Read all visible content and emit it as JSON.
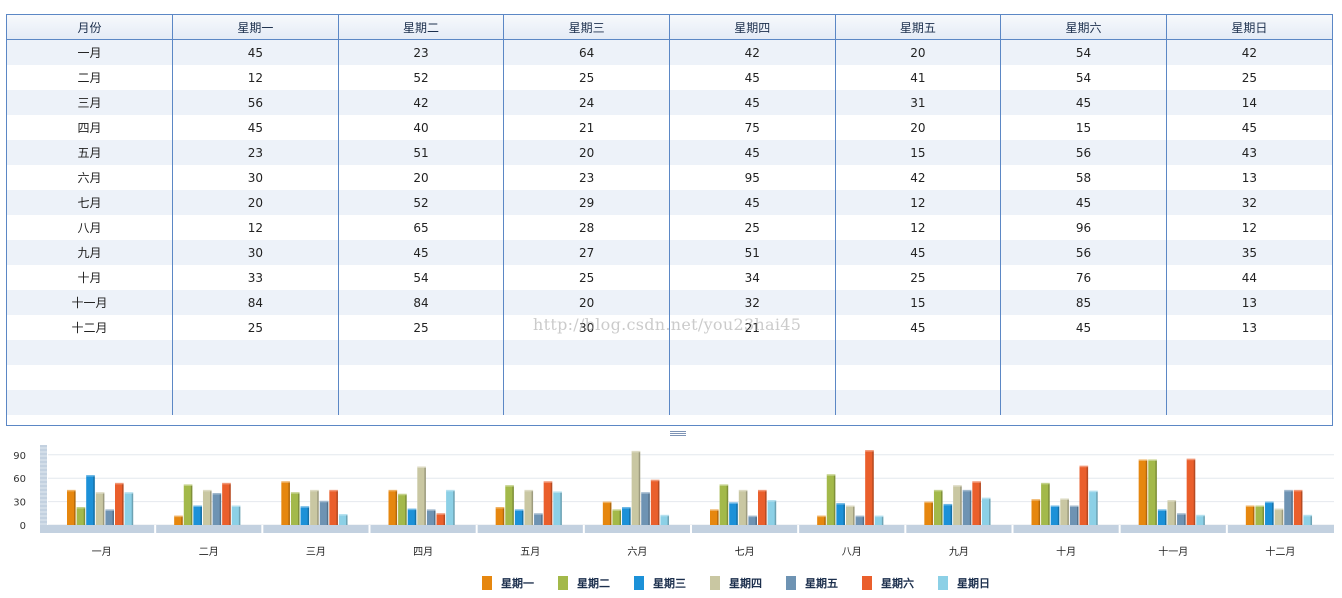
{
  "table": {
    "columns": [
      "月份",
      "星期一",
      "星期二",
      "星期三",
      "星期四",
      "星期五",
      "星期六",
      "星期日"
    ],
    "rows": [
      [
        "一月",
        "45",
        "23",
        "64",
        "42",
        "20",
        "54",
        "42"
      ],
      [
        "二月",
        "12",
        "52",
        "25",
        "45",
        "41",
        "54",
        "25"
      ],
      [
        "三月",
        "56",
        "42",
        "24",
        "45",
        "31",
        "45",
        "14"
      ],
      [
        "四月",
        "45",
        "40",
        "21",
        "75",
        "20",
        "15",
        "45"
      ],
      [
        "五月",
        "23",
        "51",
        "20",
        "45",
        "15",
        "56",
        "43"
      ],
      [
        "六月",
        "30",
        "20",
        "23",
        "95",
        "42",
        "58",
        "13"
      ],
      [
        "七月",
        "20",
        "52",
        "29",
        "45",
        "12",
        "45",
        "32"
      ],
      [
        "八月",
        "12",
        "65",
        "28",
        "25",
        "12",
        "96",
        "12"
      ],
      [
        "九月",
        "30",
        "45",
        "27",
        "51",
        "45",
        "56",
        "35"
      ],
      [
        "十月",
        "33",
        "54",
        "25",
        "34",
        "25",
        "76",
        "44"
      ],
      [
        "十一月",
        "84",
        "84",
        "20",
        "32",
        "15",
        "85",
        "13"
      ],
      [
        "十二月",
        "25",
        "25",
        "30",
        "21",
        "45",
        "45",
        "13"
      ]
    ],
    "empty_rows": 3
  },
  "watermark": "http://blog.csdn.net/you23hai45",
  "chart_data": {
    "type": "bar",
    "categories": [
      "一月",
      "二月",
      "三月",
      "四月",
      "五月",
      "六月",
      "七月",
      "八月",
      "九月",
      "十月",
      "十一月",
      "十二月"
    ],
    "series": [
      {
        "name": "星期一",
        "color": "#e6870f",
        "values": [
          45,
          12,
          56,
          45,
          23,
          30,
          20,
          12,
          30,
          33,
          84,
          25
        ]
      },
      {
        "name": "星期二",
        "color": "#a3b94a",
        "values": [
          23,
          52,
          42,
          40,
          51,
          20,
          52,
          65,
          45,
          54,
          84,
          25
        ]
      },
      {
        "name": "星期三",
        "color": "#1c91d8",
        "values": [
          64,
          25,
          24,
          21,
          20,
          23,
          29,
          28,
          27,
          25,
          20,
          30
        ]
      },
      {
        "name": "星期四",
        "color": "#c9c7a2",
        "values": [
          42,
          45,
          45,
          75,
          45,
          95,
          45,
          25,
          51,
          34,
          32,
          21
        ]
      },
      {
        "name": "星期五",
        "color": "#6e93b3",
        "values": [
          20,
          41,
          31,
          20,
          15,
          42,
          12,
          12,
          45,
          25,
          15,
          45
        ]
      },
      {
        "name": "星期六",
        "color": "#ea5f2c",
        "values": [
          54,
          54,
          45,
          15,
          56,
          58,
          45,
          96,
          56,
          76,
          85,
          45
        ]
      },
      {
        "name": "星期日",
        "color": "#8cd0e6",
        "values": [
          42,
          25,
          14,
          45,
          43,
          13,
          32,
          12,
          35,
          44,
          13,
          13
        ]
      }
    ],
    "yticks": [
      "0",
      "30",
      "60",
      "90"
    ],
    "ylim": [
      0,
      100
    ],
    "grid": true,
    "legend": "bottom"
  }
}
